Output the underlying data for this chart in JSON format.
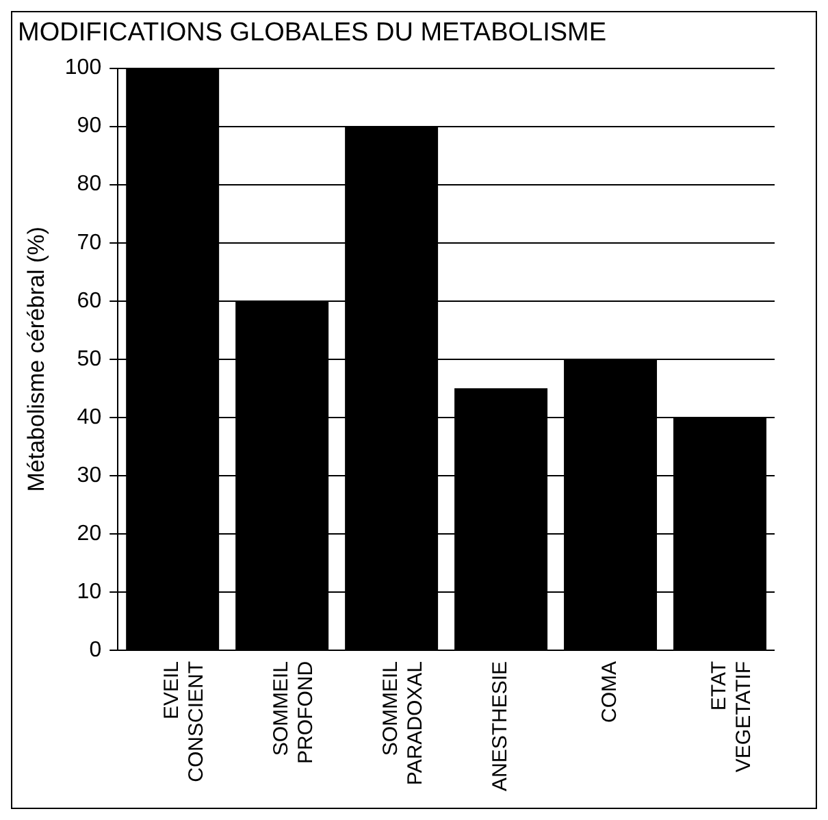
{
  "chart_data": {
    "type": "bar",
    "title": "MODIFICATIONS GLOBALES DU METABOLISME",
    "ylabel": "Métabolisme cérébral (%)",
    "categories": [
      "EVEIL CONSCIENT",
      "SOMMEIL PROFOND",
      "SOMMEIL PARADOXAL",
      "ANESTHESIE",
      "COMA",
      "ETAT VEGETATIF"
    ],
    "values": [
      100,
      60,
      90,
      45,
      50,
      40
    ],
    "color": "#000000",
    "ylim": [
      0,
      100
    ],
    "yticks": [
      0,
      10,
      20,
      30,
      40,
      50,
      60,
      70,
      80,
      90,
      100
    ],
    "grid": "y",
    "legend": false
  }
}
